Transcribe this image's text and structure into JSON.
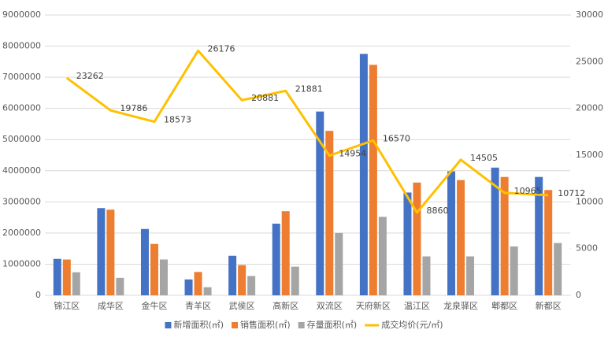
{
  "chart_data": {
    "type": "bar",
    "categories": [
      "锦江区",
      "成华区",
      "金牛区",
      "青羊区",
      "武侯区",
      "高新区",
      "双流区",
      "天府新区",
      "温江区",
      "龙泉驿区",
      "郫都区",
      "新都区"
    ],
    "series": [
      {
        "name": "新增面积(㎡)",
        "color": "#4472c4",
        "type": "bar",
        "values": [
          1170000,
          2800000,
          2130000,
          510000,
          1270000,
          2300000,
          5900000,
          7750000,
          3300000,
          3980000,
          4100000,
          3800000
        ]
      },
      {
        "name": "销售面积(㎡)",
        "color": "#ed7d31",
        "type": "bar",
        "values": [
          1150000,
          2750000,
          1650000,
          750000,
          970000,
          2700000,
          5280000,
          7400000,
          3620000,
          3700000,
          3800000,
          3380000
        ]
      },
      {
        "name": "存量面积(㎡)",
        "color": "#a5a5a5",
        "type": "bar",
        "values": [
          740000,
          560000,
          1150000,
          260000,
          620000,
          920000,
          2000000,
          2520000,
          1250000,
          1250000,
          1570000,
          1680000
        ]
      },
      {
        "name": "成交均价(元/㎡)",
        "color": "#ffc000",
        "type": "line",
        "axis": "y2",
        "values": [
          23262,
          19786,
          18573,
          26176,
          20881,
          21881,
          14954,
          16570,
          8860,
          14505,
          10965,
          10712
        ]
      }
    ],
    "ylim": [
      0,
      9000000
    ],
    "yticks": [
      0,
      1000000,
      2000000,
      3000000,
      4000000,
      5000000,
      6000000,
      7000000,
      8000000,
      9000000
    ],
    "y2lim": [
      0,
      30000
    ],
    "y2ticks": [
      0,
      5000,
      10000,
      15000,
      20000,
      25000,
      30000
    ],
    "grid": true,
    "legend": "bottom"
  }
}
